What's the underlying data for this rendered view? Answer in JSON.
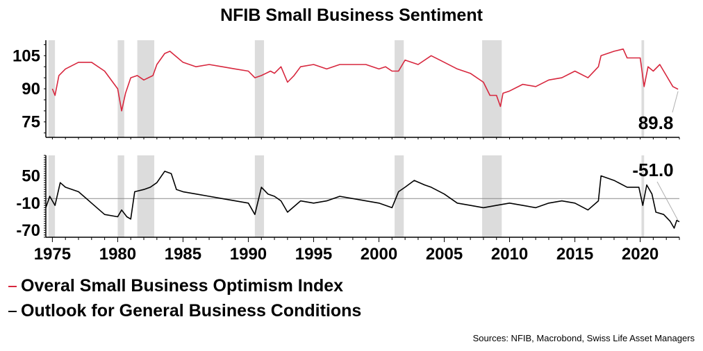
{
  "chart_data": {
    "type": "line",
    "title": "NFIB Small Business Sentiment",
    "x_axis": {
      "range": [
        1974.5,
        2023.0
      ],
      "ticks": [
        "1975",
        "1980",
        "1985",
        "1990",
        "1995",
        "2000",
        "2005",
        "2010",
        "2015",
        "2020"
      ],
      "tick_values": [
        1975,
        1980,
        1985,
        1990,
        1995,
        2000,
        2005,
        2010,
        2015,
        2020
      ]
    },
    "recessions": [
      [
        1974.7,
        1975.2
      ],
      [
        1980.0,
        1980.5
      ],
      [
        1981.5,
        1982.8
      ],
      [
        1990.5,
        1991.2
      ],
      [
        2001.2,
        2001.9
      ],
      [
        2007.9,
        2009.4
      ],
      [
        2020.1,
        2020.3
      ]
    ],
    "panels": [
      {
        "name": "optimism",
        "ylim": [
          68,
          112
        ],
        "yticks": [
          "105",
          "90",
          "75"
        ],
        "ytick_values": [
          105,
          90,
          75
        ],
        "series": [
          {
            "name": "Overal Small Business Optimism Index",
            "color": "#d7263d",
            "points": [
              [
                1975.0,
                90
              ],
              [
                1975.2,
                87
              ],
              [
                1975.5,
                96
              ],
              [
                1976,
                99
              ],
              [
                1977,
                102
              ],
              [
                1978,
                102
              ],
              [
                1979,
                98
              ],
              [
                1980,
                90
              ],
              [
                1980.3,
                80
              ],
              [
                1980.6,
                88
              ],
              [
                1981,
                95
              ],
              [
                1981.5,
                96
              ],
              [
                1982,
                94
              ],
              [
                1982.7,
                96
              ],
              [
                1983,
                101
              ],
              [
                1983.6,
                106
              ],
              [
                1984,
                107
              ],
              [
                1985,
                102
              ],
              [
                1986,
                100
              ],
              [
                1987,
                101
              ],
              [
                1988,
                100
              ],
              [
                1989,
                99
              ],
              [
                1990,
                98
              ],
              [
                1990.5,
                95
              ],
              [
                1991,
                96
              ],
              [
                1991.7,
                98
              ],
              [
                1992,
                97
              ],
              [
                1992.5,
                100
              ],
              [
                1993,
                93
              ],
              [
                1993.5,
                96
              ],
              [
                1994,
                100
              ],
              [
                1995,
                101
              ],
              [
                1996,
                99
              ],
              [
                1997,
                101
              ],
              [
                1998,
                101
              ],
              [
                1999,
                101
              ],
              [
                2000,
                99
              ],
              [
                2000.5,
                100
              ],
              [
                2001,
                98
              ],
              [
                2001.5,
                98
              ],
              [
                2002,
                103
              ],
              [
                2003,
                101
              ],
              [
                2004,
                105
              ],
              [
                2005,
                102
              ],
              [
                2006,
                99
              ],
              [
                2007,
                97
              ],
              [
                2008,
                93
              ],
              [
                2008.5,
                87
              ],
              [
                2009,
                87
              ],
              [
                2009.3,
                82
              ],
              [
                2009.5,
                88
              ],
              [
                2010,
                89
              ],
              [
                2011,
                92
              ],
              [
                2012,
                91
              ],
              [
                2013,
                94
              ],
              [
                2014,
                95
              ],
              [
                2015,
                98
              ],
              [
                2016,
                95
              ],
              [
                2016.8,
                100
              ],
              [
                2017,
                105
              ],
              [
                2018,
                107
              ],
              [
                2018.7,
                108
              ],
              [
                2019,
                104
              ],
              [
                2020,
                104
              ],
              [
                2020.3,
                91
              ],
              [
                2020.6,
                100
              ],
              [
                2021,
                98
              ],
              [
                2021.5,
                101
              ],
              [
                2022,
                96
              ],
              [
                2022.5,
                91
              ],
              [
                2022.9,
                89.8
              ]
            ]
          }
        ],
        "annotation": {
          "text": "89.8",
          "x": 2022.9,
          "y": 89.8
        }
      },
      {
        "name": "outlook",
        "ylim": [
          -85,
          95
        ],
        "yticks": [
          "50",
          "-10",
          "-70"
        ],
        "ytick_values": [
          50,
          -10,
          -70
        ],
        "zero_line": 0,
        "series": [
          {
            "name": "Outlook for General Business Conditions",
            "color": "#000000",
            "points": [
              [
                1974.5,
                -20
              ],
              [
                1974.8,
                5
              ],
              [
                1975.2,
                -15
              ],
              [
                1975.6,
                35
              ],
              [
                1976,
                25
              ],
              [
                1977,
                15
              ],
              [
                1978,
                -10
              ],
              [
                1979,
                -35
              ],
              [
                1980,
                -40
              ],
              [
                1980.3,
                -25
              ],
              [
                1980.7,
                -40
              ],
              [
                1981,
                -45
              ],
              [
                1981.3,
                15
              ],
              [
                1982,
                20
              ],
              [
                1982.5,
                25
              ],
              [
                1983,
                35
              ],
              [
                1983.6,
                60
              ],
              [
                1984.1,
                55
              ],
              [
                1984.5,
                20
              ],
              [
                1985,
                15
              ],
              [
                1986,
                10
              ],
              [
                1987,
                5
              ],
              [
                1988,
                0
              ],
              [
                1989,
                -5
              ],
              [
                1990,
                -10
              ],
              [
                1990.5,
                -35
              ],
              [
                1991,
                25
              ],
              [
                1991.5,
                10
              ],
              [
                1992,
                5
              ],
              [
                1992.5,
                -5
              ],
              [
                1993,
                -30
              ],
              [
                1994,
                -5
              ],
              [
                1995,
                -10
              ],
              [
                1996,
                -5
              ],
              [
                1997,
                5
              ],
              [
                1998,
                0
              ],
              [
                1999,
                -5
              ],
              [
                2000,
                -10
              ],
              [
                2001,
                -20
              ],
              [
                2001.5,
                15
              ],
              [
                2002,
                25
              ],
              [
                2002.7,
                40
              ],
              [
                2003.5,
                30
              ],
              [
                2004,
                25
              ],
              [
                2005,
                10
              ],
              [
                2006,
                -10
              ],
              [
                2007,
                -15
              ],
              [
                2008,
                -20
              ],
              [
                2009,
                -15
              ],
              [
                2010,
                -10
              ],
              [
                2011,
                -15
              ],
              [
                2012,
                -20
              ],
              [
                2013,
                -10
              ],
              [
                2014,
                -5
              ],
              [
                2015,
                -10
              ],
              [
                2016,
                -25
              ],
              [
                2016.8,
                -5
              ],
              [
                2017,
                50
              ],
              [
                2018,
                40
              ],
              [
                2019,
                25
              ],
              [
                2019.9,
                25
              ],
              [
                2020.2,
                -15
              ],
              [
                2020.5,
                30
              ],
              [
                2020.9,
                10
              ],
              [
                2021.2,
                -30
              ],
              [
                2021.8,
                -35
              ],
              [
                2022.3,
                -50
              ],
              [
                2022.6,
                -65
              ],
              [
                2022.8,
                -48
              ],
              [
                2023,
                -51
              ]
            ]
          }
        ],
        "annotation": {
          "text": "-51.0",
          "x": 2023.0,
          "y": -51.0
        }
      }
    ]
  },
  "legend": {
    "item1": {
      "label": "Overal Small Business Optimism Index",
      "color": "#d7263d"
    },
    "item2": {
      "label": "Outlook for General Business Conditions",
      "color": "#000000"
    }
  },
  "source": "Sources: NFIB, Macrobond, Swiss Life Asset Managers"
}
